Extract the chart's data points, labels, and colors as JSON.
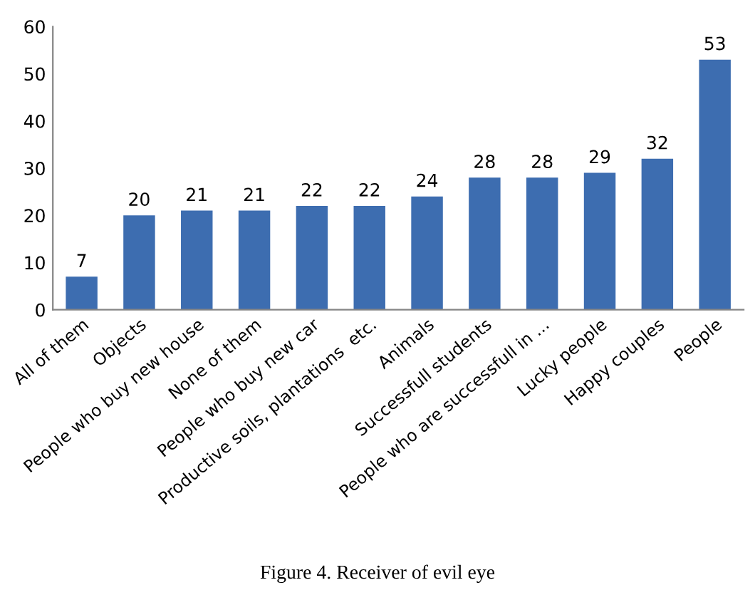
{
  "chart_data": {
    "type": "bar",
    "categories": [
      "All of them",
      "Objects",
      "People who buy new house",
      "None of them",
      "People who buy new car",
      "Productive soils, plantations  etc.",
      "Animals",
      "Successfull students",
      "People who are successfull in ...",
      "Lucky people",
      "Happy couples",
      "People"
    ],
    "values": [
      7,
      20,
      21,
      21,
      22,
      22,
      24,
      28,
      28,
      29,
      32,
      53
    ],
    "color": "#3d6db0",
    "ylim": [
      0,
      60
    ],
    "yticks": [
      0,
      10,
      20,
      30,
      40,
      50,
      60
    ],
    "data_labels": true,
    "grid": false,
    "legend": false,
    "annotations": [
      "Figure 4. Receiver of evil eye"
    ]
  }
}
